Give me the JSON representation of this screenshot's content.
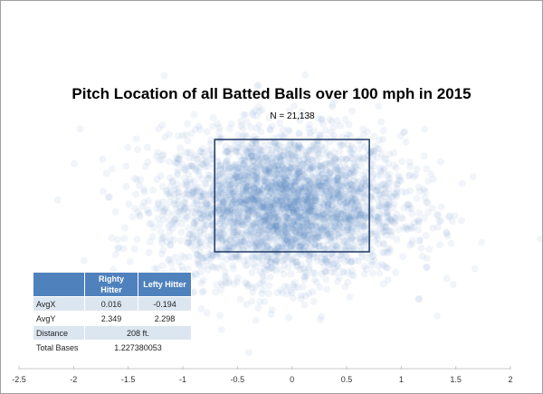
{
  "chart_data": {
    "type": "scatter",
    "title": "Pitch Location of all Batted Balls over 100 mph in 2015",
    "subtitle": "N =  21,138",
    "n_points": 21138,
    "xlabel": "",
    "ylabel": "",
    "xlim": [
      -2.5,
      2
    ],
    "x_ticks": [
      "-2.5",
      "-2",
      "-1.5",
      "-1",
      "-0.5",
      "0",
      "0.5",
      "1",
      "1.5",
      "2"
    ],
    "x_tick_values": [
      -2.5,
      -2,
      -1.5,
      -1,
      -0.5,
      0,
      0.5,
      1,
      1.5,
      2
    ],
    "grid": false,
    "point_color": "#4f81bd",
    "distribution": {
      "mean_x": -0.08,
      "mean_y": 2.32,
      "sd_x": 0.55,
      "sd_y": 0.65
    },
    "strike_zone": {
      "x": [
        -0.708,
        0.708
      ],
      "y": [
        1.5,
        3.5
      ],
      "color": "#1f3864"
    }
  },
  "table": {
    "headers": [
      "",
      "Righty Hitter",
      "Lefty Hitter"
    ],
    "header_lines": [
      [
        "Righty",
        "Lefty"
      ],
      [
        "Hitter",
        "Hitter"
      ]
    ],
    "rows": [
      {
        "label": "AvgX",
        "righty": "0.016",
        "lefty": "-0.194"
      },
      {
        "label": "AvgY",
        "righty": "2.349",
        "lefty": "2.298"
      },
      {
        "label": "Distance",
        "both": "208 ft."
      },
      {
        "label": "Total Bases",
        "both": "1.227380053"
      }
    ]
  }
}
